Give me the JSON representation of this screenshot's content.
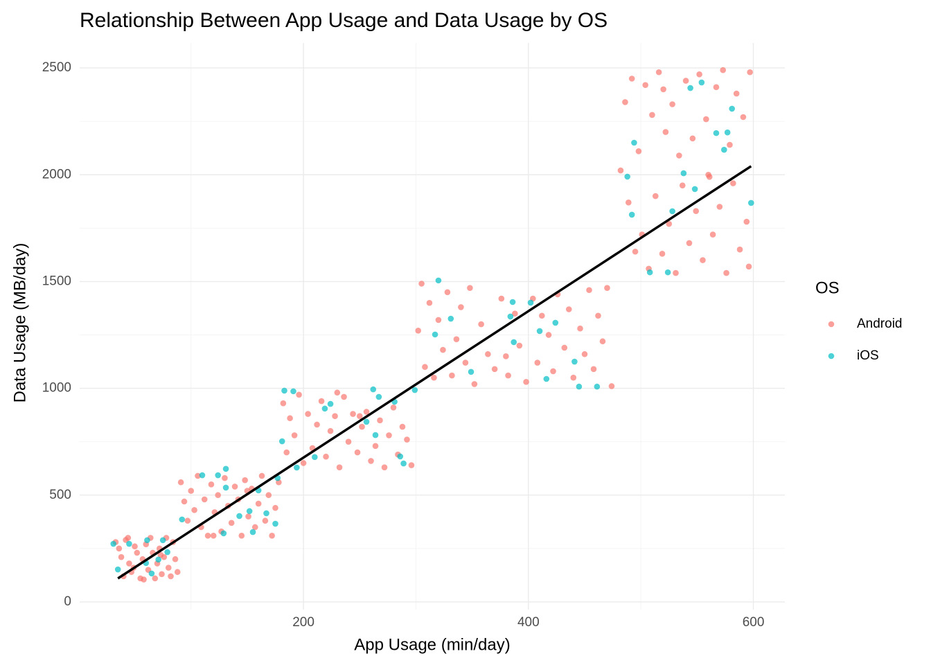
{
  "chart_data": {
    "type": "scatter",
    "title": "Relationship Between App Usage and Data Usage by OS",
    "x_label": "App Usage (min/day)",
    "y_label": "Data Usage (MB/day)",
    "legend_title": "OS",
    "legend_position": "right",
    "grid": true,
    "xlim": [
      1,
      628
    ],
    "ylim": [
      -36,
      2617
    ],
    "xticks": [
      200,
      400,
      600
    ],
    "yticks": [
      0,
      500,
      1000,
      1500,
      2000,
      2500
    ],
    "x_minor_grid": [
      100,
      300,
      500
    ],
    "y_minor_grid": [
      250,
      750,
      1250,
      1750,
      2250
    ],
    "opacity": 0.7,
    "series": [
      {
        "name": "Android",
        "color": "#F8766D",
        "x": [
          33,
          36,
          38,
          40,
          42,
          45,
          47,
          50,
          52,
          55,
          57,
          60,
          62,
          64,
          66,
          68,
          70,
          72,
          74,
          76,
          78,
          80,
          82,
          84,
          86,
          88,
          58,
          44,
          49,
          73,
          91,
          94,
          97,
          100,
          103,
          106,
          109,
          112,
          115,
          118,
          121,
          124,
          127,
          130,
          133,
          136,
          139,
          142,
          145,
          148,
          151,
          154,
          157,
          160,
          163,
          166,
          169,
          172,
          175,
          178,
          120,
          150,
          182,
          185,
          188,
          192,
          196,
          200,
          204,
          208,
          212,
          216,
          220,
          224,
          228,
          232,
          236,
          240,
          244,
          248,
          252,
          256,
          260,
          264,
          268,
          272,
          276,
          280,
          284,
          288,
          292,
          296,
          230,
          250,
          302,
          305,
          308,
          312,
          316,
          320,
          324,
          328,
          332,
          336,
          340,
          344,
          348,
          352,
          358,
          364,
          370,
          376,
          382,
          388,
          392,
          398,
          404,
          408,
          412,
          418,
          422,
          426,
          432,
          436,
          440,
          446,
          450,
          454,
          458,
          462,
          466,
          470,
          474,
          380,
          482,
          486,
          489,
          492,
          495,
          498,
          501,
          504,
          507,
          510,
          513,
          516,
          519,
          522,
          525,
          528,
          531,
          534,
          537,
          540,
          543,
          546,
          549,
          552,
          555,
          558,
          561,
          564,
          567,
          570,
          573,
          576,
          579,
          582,
          585,
          588,
          591,
          594,
          597,
          596,
          520,
          560
        ],
        "values": [
          280,
          250,
          210,
          120,
          290,
          180,
          140,
          260,
          230,
          110,
          200,
          270,
          150,
          300,
          230,
          110,
          180,
          250,
          130,
          210,
          300,
          160,
          120,
          280,
          200,
          140,
          105,
          300,
          160,
          220,
          560,
          470,
          380,
          520,
          430,
          590,
          350,
          480,
          310,
          550,
          420,
          500,
          330,
          580,
          450,
          370,
          540,
          480,
          310,
          570,
          400,
          530,
          350,
          460,
          590,
          380,
          500,
          310,
          440,
          560,
          310,
          520,
          930,
          700,
          860,
          780,
          970,
          650,
          880,
          720,
          830,
          940,
          680,
          800,
          870,
          630,
          960,
          750,
          880,
          700,
          820,
          890,
          660,
          730,
          850,
          630,
          780,
          910,
          690,
          820,
          760,
          640,
          980,
          870,
          1270,
          1490,
          1100,
          1400,
          1050,
          1320,
          1180,
          1450,
          1060,
          1230,
          1380,
          1120,
          1470,
          1020,
          1300,
          1160,
          1090,
          1420,
          1060,
          1350,
          1200,
          1030,
          1420,
          1120,
          1340,
          1250,
          1080,
          1440,
          1190,
          1370,
          1050,
          1280,
          1160,
          1460,
          1090,
          1340,
          1220,
          1470,
          1010,
          1150,
          2020,
          2340,
          1870,
          2450,
          1640,
          2110,
          1720,
          2420,
          1560,
          2280,
          1900,
          2480,
          1630,
          2200,
          1770,
          2330,
          1540,
          2090,
          1950,
          2440,
          1680,
          2170,
          1830,
          2470,
          1600,
          2260,
          1990,
          1720,
          2410,
          1850,
          2490,
          1540,
          2140,
          1960,
          2380,
          1650,
          2270,
          1780,
          2480,
          1570,
          2400,
          2000
        ]
      },
      {
        "name": "iOS",
        "color": "#00BFC4",
        "x": [
          598,
          581,
          577,
          567,
          574,
          554,
          544,
          538,
          548,
          528,
          508,
          524,
          494,
          492,
          488,
          320,
          331,
          317,
          349,
          386,
          402,
          387,
          410,
          424,
          445,
          461,
          384,
          441,
          416,
          183,
          191,
          219,
          224,
          210,
          194,
          262,
          267,
          264,
          256,
          281,
          289,
          299,
          286,
          181,
          110,
          131,
          124,
          131,
          152,
          143,
          129,
          160,
          155,
          167,
          177,
          175,
          92,
          31,
          45,
          61,
          75,
          79,
          35,
          65,
          71,
          60
        ],
        "values": [
          1868,
          2309,
          2198,
          2195,
          2117,
          2432,
          2406,
          2007,
          1933,
          1829,
          1543,
          1543,
          2150,
          1813,
          1991,
          1505,
          1326,
          1252,
          1077,
          1404,
          1401,
          1216,
          1268,
          1307,
          1008,
          1008,
          1336,
          1125,
          1044,
          989,
          986,
          905,
          927,
          678,
          629,
          995,
          960,
          781,
          843,
          937,
          648,
          992,
          681,
          752,
          593,
          623,
          593,
          535,
          425,
          402,
          321,
          522,
          327,
          415,
          580,
          366,
          386,
          272,
          272,
          289,
          289,
          233,
          152,
          133,
          198,
          182
        ]
      }
    ],
    "trend_line": {
      "color": "#000000",
      "x": [
        35,
        598
      ],
      "y": [
        110,
        2040
      ]
    }
  }
}
